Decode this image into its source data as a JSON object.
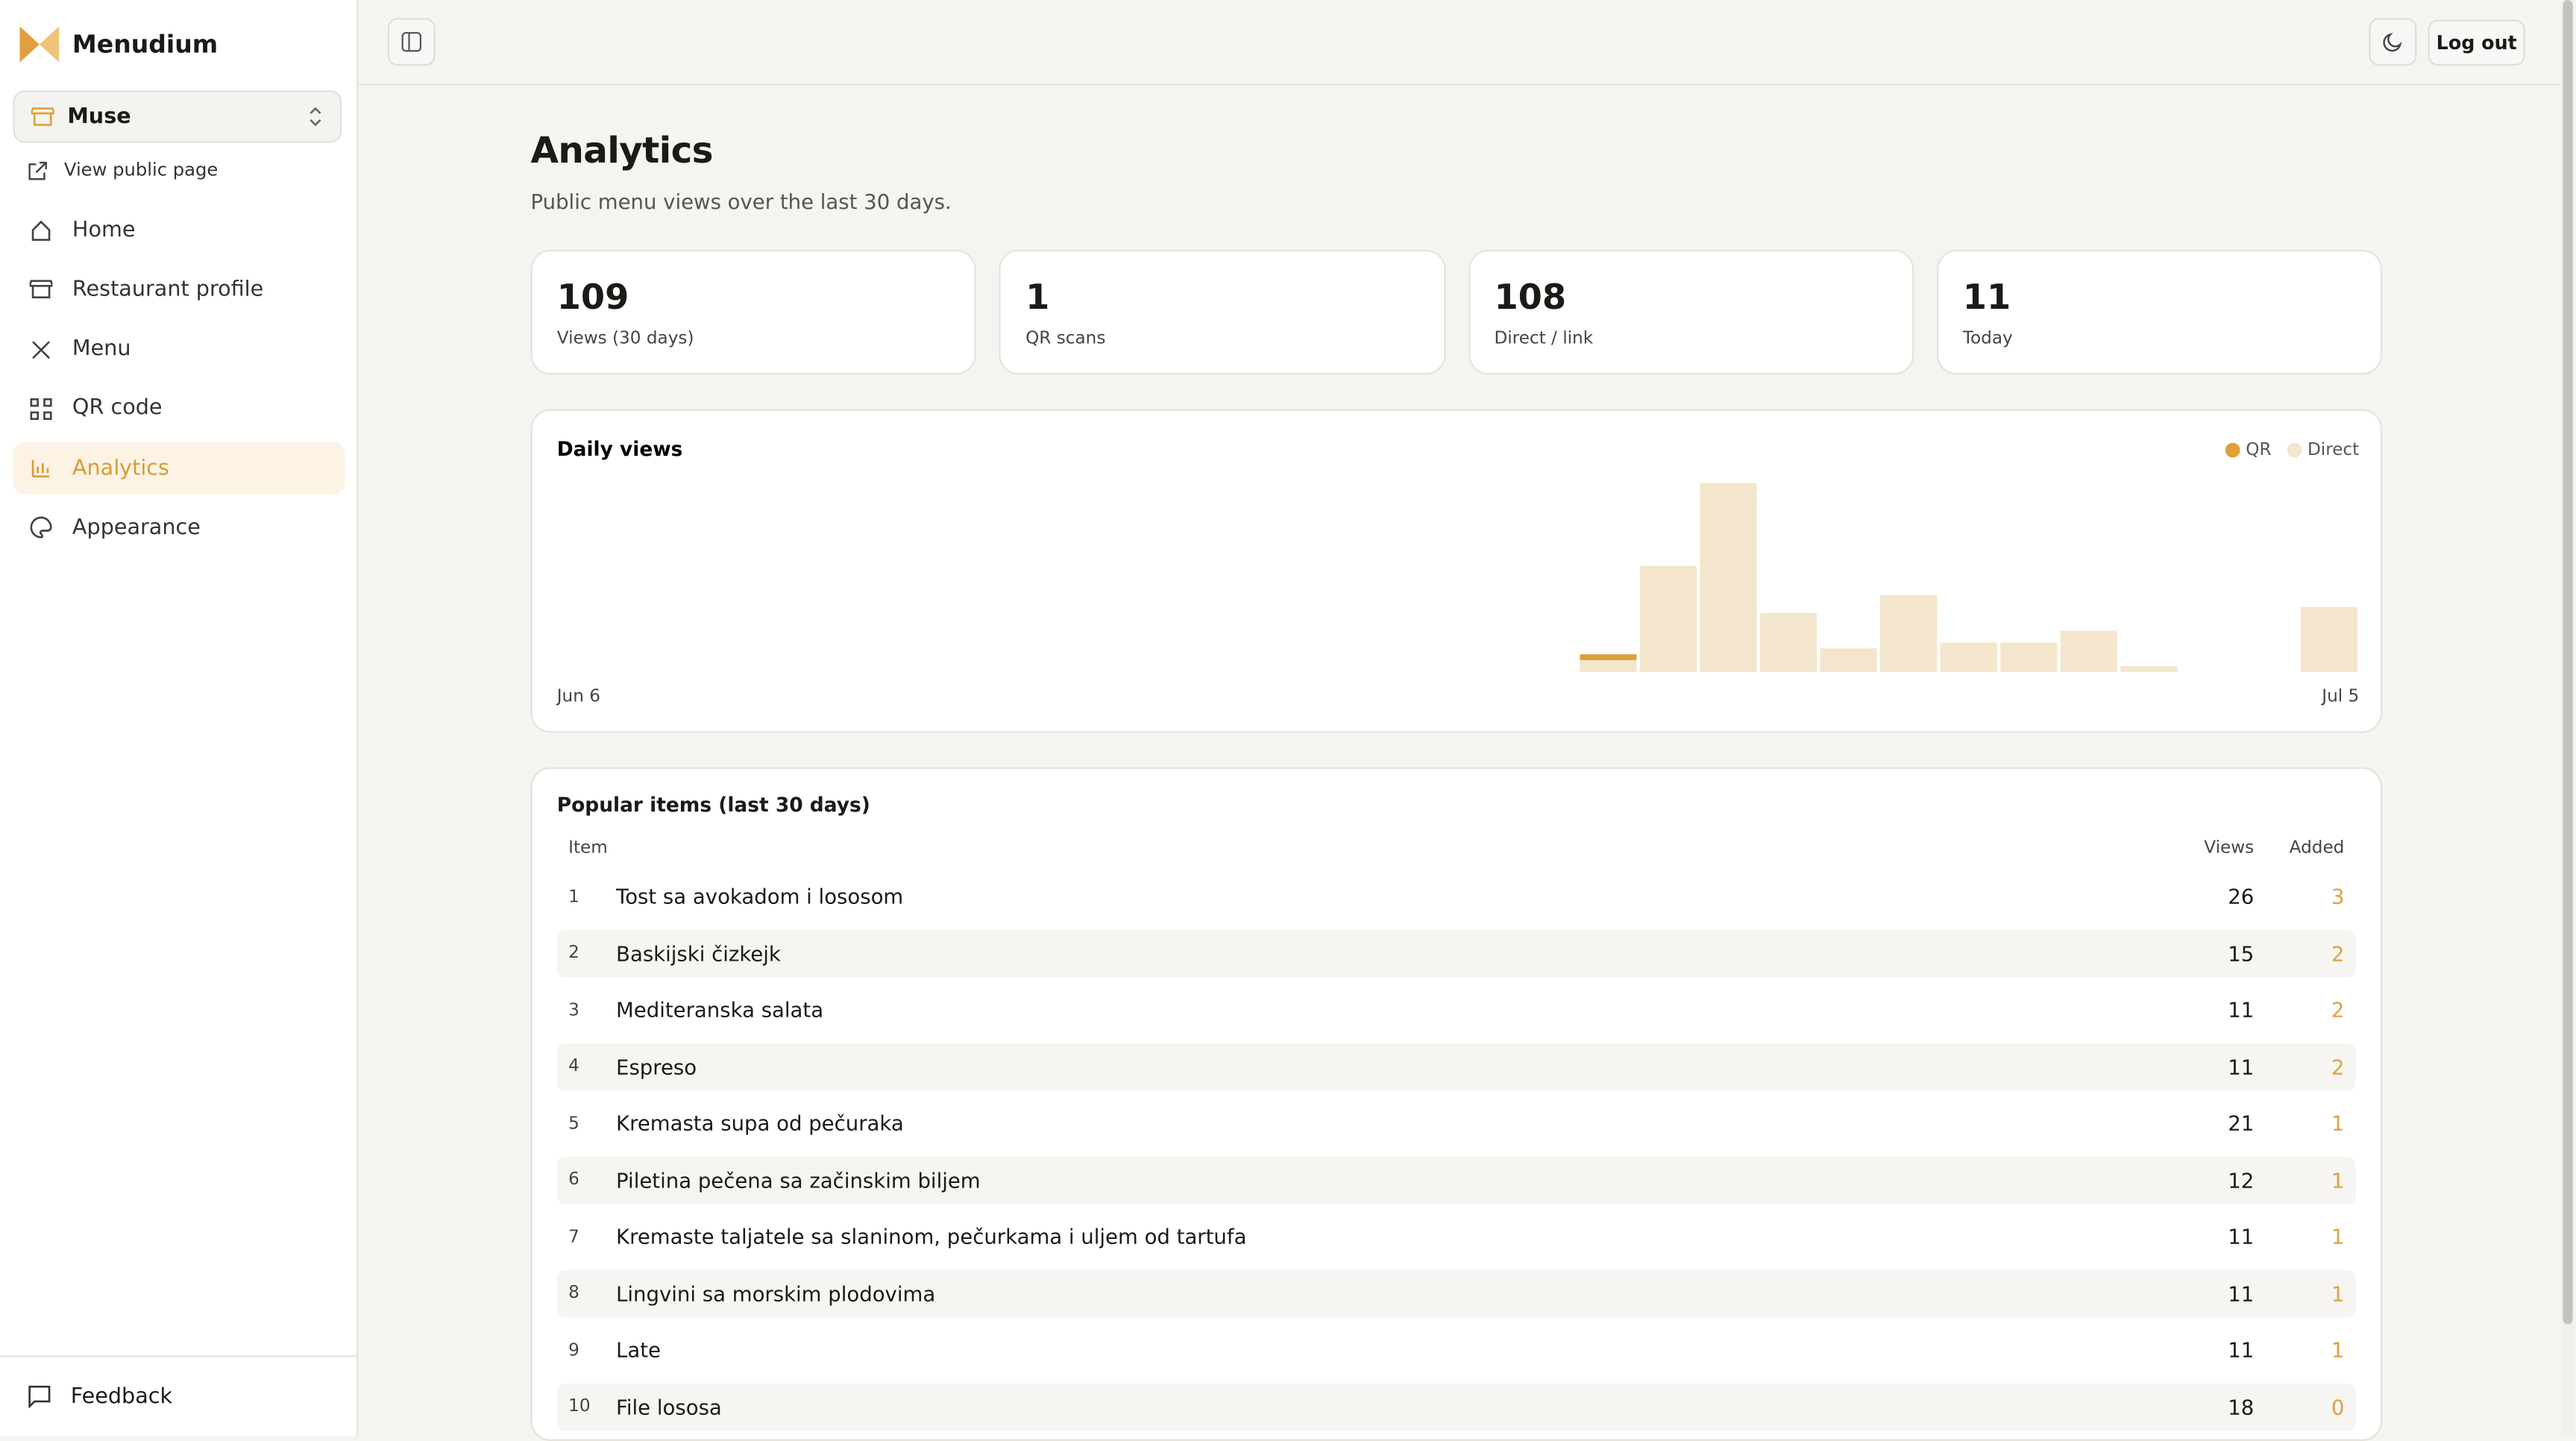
{
  "sidebar": {
    "brand": "Menudium",
    "restaurant": "Muse",
    "public_link": "View public page",
    "nav": [
      "Home",
      "Restaurant profile",
      "Menu",
      "QR code",
      "Analytics",
      "Appearance"
    ],
    "active": "Analytics",
    "feedback": "Feedback"
  },
  "header": {
    "logout": "Log out"
  },
  "page": {
    "title": "Analytics",
    "subtitle": "Public menu views over the last 30 days."
  },
  "stats": [
    {
      "value": 109,
      "label": "Views (30 days)"
    },
    {
      "value": 1,
      "label": "QR scans"
    },
    {
      "value": 108,
      "label": "Direct / link"
    },
    {
      "value": 11,
      "label": "Today"
    }
  ],
  "chart_data": {
    "type": "bar",
    "stacked": true,
    "title": "Daily views",
    "categories": [
      "Jun 6",
      null,
      null,
      null,
      null,
      null,
      null,
      null,
      null,
      null,
      null,
      null,
      null,
      null,
      null,
      null,
      null,
      null,
      null,
      null,
      null,
      null,
      null,
      null,
      null,
      null,
      null,
      null,
      null,
      "Jul 5"
    ],
    "series": [
      {
        "name": "QR",
        "color": "#e0a03c",
        "values": [
          0,
          0,
          0,
          0,
          0,
          0,
          0,
          0,
          0,
          0,
          0,
          0,
          0,
          0,
          0,
          0,
          0,
          1,
          0,
          0,
          0,
          0,
          0,
          0,
          0,
          0,
          0,
          0,
          0,
          0
        ]
      },
      {
        "name": "Direct",
        "color": "#f4e6cc",
        "values": [
          0,
          0,
          0,
          0,
          0,
          0,
          0,
          0,
          0,
          0,
          0,
          0,
          0,
          0,
          0,
          0,
          0,
          2,
          18,
          32,
          10,
          4,
          13,
          5,
          5,
          7,
          1,
          0,
          0,
          11
        ]
      }
    ],
    "legend": "top-right"
  },
  "table": {
    "title": "Popular items (last 30 days)",
    "columns": [
      "Item",
      "Views",
      "Added"
    ],
    "rows": [
      [
        1,
        "Tost sa avokadom i lososom",
        26,
        3
      ],
      [
        2,
        "Baskijski čizkejk",
        15,
        2
      ],
      [
        3,
        "Mediteranska salata",
        11,
        2
      ],
      [
        4,
        "Espreso",
        11,
        2
      ],
      [
        5,
        "Kremasta supa od pečuraka",
        21,
        1
      ],
      [
        6,
        "Piletina pečena sa začinskim biljem",
        12,
        1
      ],
      [
        7,
        "Kremaste taljatele sa slaninom, pečurkama i uljem od tartufa",
        11,
        1
      ],
      [
        8,
        "Lingvini sa morskim plodovima",
        11,
        1
      ],
      [
        9,
        "Late",
        11,
        1
      ],
      [
        10,
        "File lososa",
        18,
        0
      ]
    ]
  }
}
